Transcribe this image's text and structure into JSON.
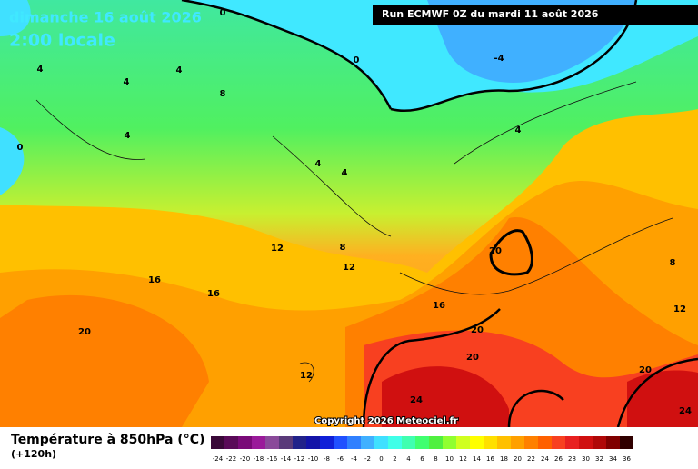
{
  "header": {
    "date": "dimanche 16 août 2026",
    "time": "2:00 locale",
    "run": "Run ECMWF 0Z du mardi 11 août 2026"
  },
  "map": {
    "contour_labels": [
      "0",
      "0",
      "-4",
      "4",
      "4",
      "4",
      "8",
      "0",
      "4",
      "4",
      "4",
      "4",
      "12",
      "8",
      "12",
      "16",
      "16",
      "16",
      "20",
      "20",
      "20",
      "20",
      "12",
      "24",
      "20",
      "24",
      "8",
      "12"
    ],
    "copyright": "Copyright 2026 Meteociel.fr"
  },
  "footer": {
    "title": "Température à 850hPa (°C)",
    "lead": "(+120h)"
  },
  "scale": {
    "labels": [
      "-24",
      "-22",
      "-20",
      "-18",
      "-16",
      "-14",
      "-12",
      "-10",
      "-8",
      "-6",
      "-4",
      "-2",
      "0",
      "2",
      "4",
      "6",
      "8",
      "10",
      "12",
      "14",
      "16",
      "18",
      "20",
      "22",
      "24",
      "26",
      "28",
      "30",
      "32",
      "34",
      "36"
    ],
    "colors": [
      "#3a0838",
      "#5a0a58",
      "#7a0a78",
      "#9a1a9a",
      "#8a4a9a",
      "#5a3a7a",
      "#22228a",
      "#1414a8",
      "#1020d8",
      "#2050ff",
      "#3080ff",
      "#40b0ff",
      "#40e0ff",
      "#40ffe8",
      "#40ffb0",
      "#40ff70",
      "#50f040",
      "#90ff30",
      "#d0ff20",
      "#ffff00",
      "#ffe000",
      "#ffc000",
      "#ffa000",
      "#ff8000",
      "#ff6000",
      "#f84020",
      "#e82020",
      "#d01010",
      "#b00808",
      "#800000",
      "#300000"
    ]
  }
}
